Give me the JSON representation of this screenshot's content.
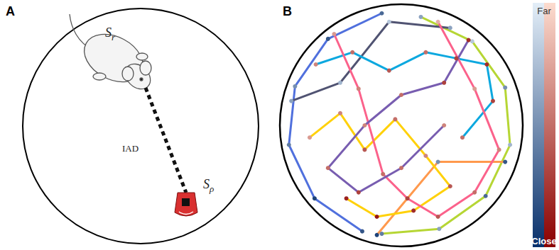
{
  "panel_a": {
    "letter": "A",
    "rat_label": {
      "symbol": "S",
      "subscript": "r"
    },
    "robot_label": {
      "symbol": "S",
      "subscript": "ρ"
    },
    "distance_label": "IAD"
  },
  "chart_data": {
    "type": "line",
    "letter": "B",
    "xlim": [
      -1,
      1
    ],
    "ylim": [
      -1,
      1
    ],
    "tick_labels": false,
    "grid": false,
    "marker": "circle",
    "colorbar": {
      "range": [
        0,
        1
      ],
      "top_label": "Far",
      "bottom_label": "Close"
    },
    "series": [
      {
        "colors": [
          "#08306b",
          "#e3eef8"
        ],
        "paths": [
          [
            [
              -0.16,
              0.92,
              0.3
            ],
            [
              -0.6,
              0.71,
              0.2
            ],
            [
              -0.87,
              0.32,
              0.5
            ],
            [
              -0.92,
              -0.16,
              0.4
            ],
            [
              -0.71,
              -0.6,
              0.1
            ],
            [
              -0.32,
              -0.87,
              0.2
            ]
          ],
          [
            [
              -0.16,
              -0.89,
              0.4
            ],
            [
              0.31,
              -0.85,
              0.6
            ],
            [
              0.69,
              -0.58,
              0.3
            ],
            [
              0.89,
              -0.16,
              0.7
            ],
            [
              0.85,
              0.31,
              0.5
            ],
            [
              0.58,
              0.69,
              0.8
            ],
            [
              0.16,
              0.89,
              0.6
            ]
          ],
          [
            [
              -0.9,
              0.2,
              0.6
            ],
            [
              -0.5,
              0.35,
              0.7
            ],
            [
              -0.1,
              0.85,
              0.8
            ],
            [
              0.4,
              0.8,
              0.6
            ]
          ],
          [
            [
              0.85,
              -0.3,
              0.2
            ],
            [
              0.3,
              -0.3,
              0.5
            ],
            [
              -0.2,
              -0.9,
              0.1
            ]
          ]
        ]
      },
      {
        "colors": [
          "#8b0000",
          "#fcdccf"
        ],
        "paths": [
          [
            [
              -0.7,
              0.5,
              0.6
            ],
            [
              -0.4,
              0.6,
              0.5
            ],
            [
              -0.1,
              0.45,
              0.4
            ],
            [
              0.2,
              0.6,
              0.5
            ],
            [
              0.45,
              0.55,
              0.3
            ],
            [
              0.7,
              0.5,
              0.2
            ],
            [
              0.75,
              0.2,
              0.3
            ],
            [
              0.5,
              -0.1,
              0.5
            ]
          ],
          [
            [
              -0.75,
              -0.1,
              0.7
            ],
            [
              -0.5,
              0.1,
              0.6
            ],
            [
              -0.3,
              -0.2,
              0.4
            ],
            [
              -0.05,
              0.05,
              0.5
            ],
            [
              0.2,
              -0.25,
              0.6
            ],
            [
              0.4,
              -0.5,
              0.4
            ],
            [
              0.1,
              -0.7,
              0.2
            ],
            [
              -0.2,
              -0.75,
              0.1
            ],
            [
              -0.45,
              -0.6,
              0.15
            ]
          ],
          [
            [
              -0.55,
              0.75,
              0.7
            ],
            [
              -0.35,
              0.3,
              0.6
            ],
            [
              -0.15,
              -0.4,
              0.5
            ],
            [
              0.05,
              -0.6,
              0.3
            ],
            [
              0.3,
              -0.75,
              0.4
            ],
            [
              0.6,
              -0.55,
              0.5
            ],
            [
              0.8,
              -0.2,
              0.6
            ],
            [
              0.6,
              0.3,
              0.7
            ],
            [
              0.3,
              0.85,
              0.8
            ]
          ],
          [
            [
              0.55,
              0.7,
              0.2
            ],
            [
              0.35,
              0.35,
              0.3
            ],
            [
              0.0,
              0.25,
              0.5
            ],
            [
              -0.3,
              0.0,
              0.6
            ],
            [
              -0.6,
              -0.35,
              0.5
            ],
            [
              -0.35,
              -0.55,
              0.3
            ],
            [
              0.0,
              -0.35,
              0.5
            ],
            [
              0.35,
              0.0,
              0.6
            ]
          ]
        ]
      }
    ]
  }
}
